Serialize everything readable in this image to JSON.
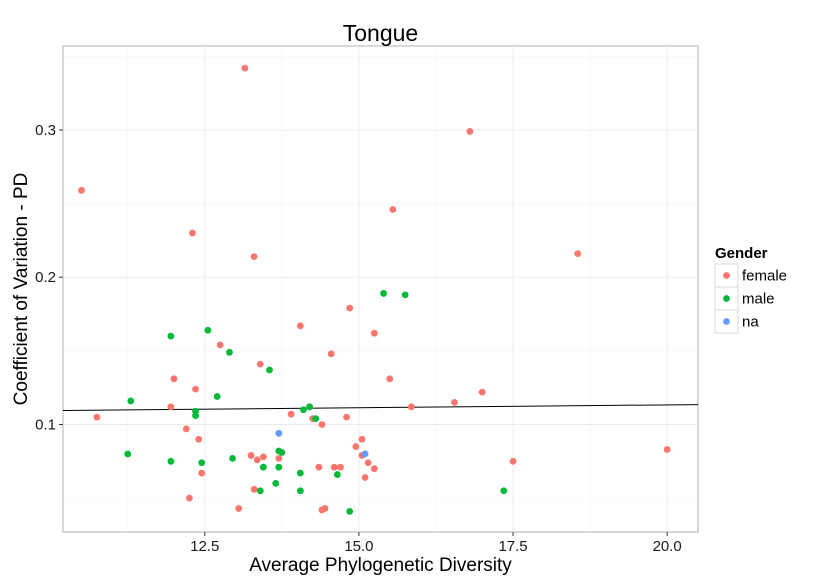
{
  "chart_data": {
    "type": "scatter",
    "title": "Tongue",
    "xlabel": "Average Phylogenetic Diversity",
    "ylabel": "Coefficient of Variation - PD",
    "xlim": [
      10.2,
      20.5
    ],
    "ylim": [
      0.027,
      0.357
    ],
    "x_ticks": [
      12.5,
      15.0,
      17.5,
      20.0
    ],
    "x_tick_labels": [
      "12.5",
      "15.0",
      "17.5",
      "20.0"
    ],
    "y_ticks": [
      0.1,
      0.2,
      0.3
    ],
    "y_tick_labels": [
      "0.1",
      "0.2",
      "0.3"
    ],
    "grid": true,
    "legend": {
      "title": "Gender",
      "position": "right"
    },
    "trend_line": {
      "x": [
        10.2,
        20.5
      ],
      "y": [
        0.1095,
        0.1135
      ]
    },
    "series": [
      {
        "name": "female",
        "color": "#F8766D",
        "points": [
          [
            10.5,
            0.259
          ],
          [
            10.75,
            0.105
          ],
          [
            11.95,
            0.112
          ],
          [
            12.0,
            0.131
          ],
          [
            12.2,
            0.097
          ],
          [
            12.3,
            0.23
          ],
          [
            12.35,
            0.124
          ],
          [
            12.4,
            0.09
          ],
          [
            12.45,
            0.067
          ],
          [
            12.25,
            0.05
          ],
          [
            12.75,
            0.154
          ],
          [
            13.05,
            0.043
          ],
          [
            13.15,
            0.342
          ],
          [
            13.25,
            0.079
          ],
          [
            13.3,
            0.056
          ],
          [
            13.3,
            0.214
          ],
          [
            13.35,
            0.076
          ],
          [
            13.4,
            0.141
          ],
          [
            13.45,
            0.078
          ],
          [
            13.7,
            0.077
          ],
          [
            13.9,
            0.107
          ],
          [
            14.05,
            0.167
          ],
          [
            14.2,
            0.112
          ],
          [
            14.25,
            0.104
          ],
          [
            14.35,
            0.071
          ],
          [
            14.4,
            0.1
          ],
          [
            14.4,
            0.042
          ],
          [
            14.45,
            0.043
          ],
          [
            14.55,
            0.148
          ],
          [
            14.6,
            0.071
          ],
          [
            14.7,
            0.071
          ],
          [
            14.8,
            0.105
          ],
          [
            14.85,
            0.179
          ],
          [
            14.95,
            0.085
          ],
          [
            15.05,
            0.09
          ],
          [
            15.05,
            0.079
          ],
          [
            15.1,
            0.064
          ],
          [
            15.15,
            0.074
          ],
          [
            15.25,
            0.07
          ],
          [
            15.25,
            0.162
          ],
          [
            15.5,
            0.131
          ],
          [
            15.55,
            0.246
          ],
          [
            15.85,
            0.112
          ],
          [
            16.55,
            0.115
          ],
          [
            16.8,
            0.299
          ],
          [
            17.0,
            0.122
          ],
          [
            17.5,
            0.075
          ],
          [
            18.55,
            0.216
          ],
          [
            20.0,
            0.083
          ]
        ]
      },
      {
        "name": "male",
        "color": "#00BA38",
        "points": [
          [
            11.25,
            0.08
          ],
          [
            11.3,
            0.116
          ],
          [
            11.95,
            0.16
          ],
          [
            11.95,
            0.075
          ],
          [
            12.35,
            0.106
          ],
          [
            12.35,
            0.109
          ],
          [
            12.45,
            0.074
          ],
          [
            12.55,
            0.164
          ],
          [
            12.7,
            0.119
          ],
          [
            12.9,
            0.149
          ],
          [
            12.95,
            0.077
          ],
          [
            13.4,
            0.055
          ],
          [
            13.45,
            0.071
          ],
          [
            13.55,
            0.137
          ],
          [
            13.65,
            0.06
          ],
          [
            13.7,
            0.082
          ],
          [
            13.7,
            0.071
          ],
          [
            13.75,
            0.081
          ],
          [
            14.05,
            0.067
          ],
          [
            14.05,
            0.055
          ],
          [
            14.1,
            0.11
          ],
          [
            14.2,
            0.112
          ],
          [
            14.3,
            0.104
          ],
          [
            14.85,
            0.041
          ],
          [
            14.65,
            0.066
          ],
          [
            15.4,
            0.189
          ],
          [
            15.75,
            0.188
          ],
          [
            17.35,
            0.055
          ]
        ]
      },
      {
        "name": "na",
        "color": "#619CFF",
        "points": [
          [
            13.7,
            0.094
          ],
          [
            15.1,
            0.08
          ]
        ]
      }
    ]
  }
}
